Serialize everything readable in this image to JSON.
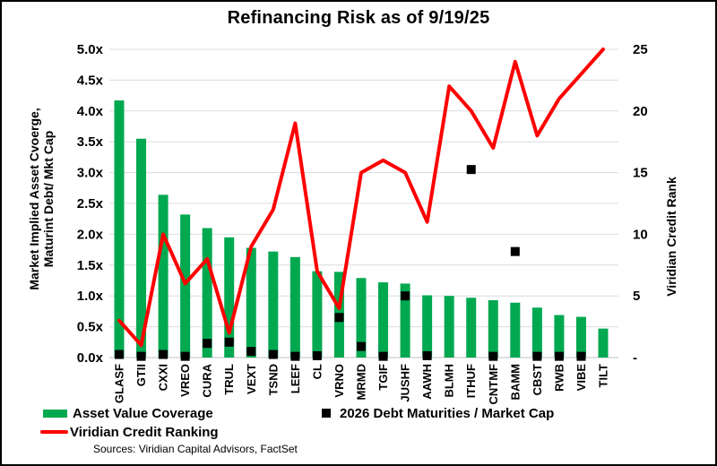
{
  "title": "Refinancing Risk as of 9/19/25",
  "source_note": "Sources: Viridian Capital Advisors, FactSet",
  "legend": {
    "asset_value_coverage": "Asset Value Coverage",
    "debt_maturities": "2026 Debt Maturities / Market Cap",
    "credit_ranking": "Viridian Credit Ranking"
  },
  "colors": {
    "bar_green": "#00A850",
    "line_red": "#FF0000",
    "marker_black": "#000000",
    "gridline": "#DCDCDC",
    "axis_line": "#C0C0C0",
    "text": "#000000"
  },
  "chart_data": {
    "type": "combo",
    "categories": [
      "GLASF",
      "GTII",
      "CXXI",
      "VREO",
      "CURA",
      "TRUL",
      "VEXT",
      "TSND",
      "LEEF",
      "CL",
      "VRNO",
      "MRMD",
      "TGIF",
      "JUSHF",
      "AAWH",
      "BLMH",
      "ITHUF",
      "CNTMF",
      "BAMM",
      "CBST",
      "RWB",
      "VIBE",
      "TILT"
    ],
    "series": [
      {
        "name": "Asset Value Coverage",
        "type": "bar",
        "axis": "left",
        "color": "#00A850",
        "values": [
          4.17,
          3.55,
          2.64,
          2.32,
          2.1,
          1.95,
          1.78,
          1.72,
          1.63,
          1.4,
          1.39,
          1.29,
          1.22,
          1.2,
          1.01,
          1.0,
          0.97,
          0.93,
          0.89,
          0.81,
          0.69,
          0.66,
          0.47
        ]
      },
      {
        "name": "2026 Debt Maturities / Market Cap",
        "type": "scatter",
        "marker": "square",
        "axis": "left",
        "color": "#000000",
        "values": [
          0.05,
          0.02,
          0.05,
          0.02,
          0.23,
          0.25,
          0.1,
          0.05,
          0.02,
          0.03,
          0.65,
          0.18,
          0.02,
          1.0,
          0.03,
          null,
          3.05,
          0.02,
          1.72,
          0.02,
          0.02,
          0.02,
          null
        ]
      },
      {
        "name": "Viridian Credit Ranking",
        "type": "line",
        "axis": "right",
        "color": "#FF0000",
        "values": [
          3,
          1,
          10,
          6,
          8,
          2,
          9,
          12,
          19,
          7,
          4,
          15,
          16,
          15,
          11,
          22,
          20,
          17,
          24,
          18,
          21,
          23,
          25
        ]
      }
    ],
    "left_axis": {
      "label": "Market Implied Asset Cvoerge, Maturint Debt/ Mkt Cap",
      "label_lines": [
        "Market Implied Asset Cvoerge,",
        "Maturint Debt/ Mkt Cap"
      ],
      "range": [
        0,
        5
      ],
      "tick_step": 0.5,
      "tick_labels": [
        "0.0x",
        "0.5x",
        "1.0x",
        "1.5x",
        "2.0x",
        "2.5x",
        "3.0x",
        "3.5x",
        "4.0x",
        "4.5x",
        "5.0x"
      ]
    },
    "right_axis": {
      "label": "Viridian Credit Rank",
      "range": [
        0,
        25
      ],
      "tick_step": 5,
      "tick_labels": [
        "-",
        "5",
        "10",
        "15",
        "20",
        "25"
      ]
    },
    "grid": true,
    "legend_position": "bottom-left"
  }
}
